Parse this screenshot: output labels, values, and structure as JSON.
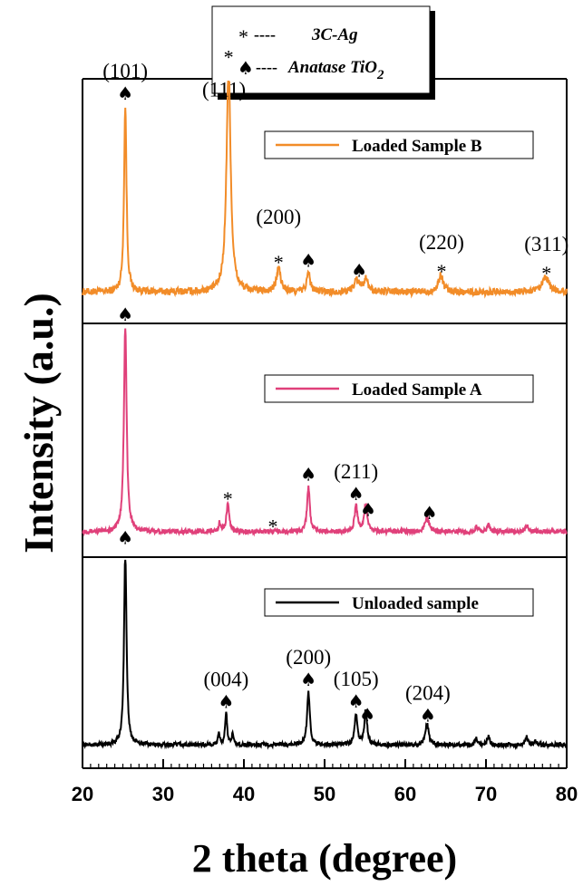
{
  "chart_data": {
    "type": "line",
    "xlabel": "2 theta (degree)",
    "ylabel": "Intensity (a.u.)",
    "xlim": [
      20,
      80
    ],
    "xticks": [
      "20",
      "30",
      "40",
      "50",
      "60",
      "70",
      "80"
    ],
    "grid": false,
    "legend": {
      "placement": "top-center",
      "items": [
        {
          "marker": "*",
          "label": "3C-Ag"
        },
        {
          "marker": "♠",
          "label": "Anatase TiO",
          "subscript": "2"
        }
      ]
    },
    "panels": [
      {
        "name": "Loaded Sample B",
        "color": "#F28C28",
        "baseline": 0.12,
        "peaks": [
          {
            "x": 25.3,
            "h": 0.78,
            "w": 0.18
          },
          {
            "x": 38.1,
            "h": 0.96,
            "w": 0.3
          },
          {
            "x": 44.3,
            "h": 0.1,
            "w": 0.3
          },
          {
            "x": 48.0,
            "h": 0.08,
            "w": 0.25
          },
          {
            "x": 54.0,
            "h": 0.05,
            "w": 0.4
          },
          {
            "x": 55.1,
            "h": 0.05,
            "w": 0.35
          },
          {
            "x": 64.4,
            "h": 0.07,
            "w": 0.35
          },
          {
            "x": 77.4,
            "h": 0.06,
            "w": 0.5
          }
        ],
        "annotations": [
          {
            "x": 25.3,
            "symbol": "♠",
            "label": "(101)"
          },
          {
            "x": 38.1,
            "symbol": "*",
            "label": "(111)"
          },
          {
            "x": 44.3,
            "symbol": "*",
            "label": "(200)"
          },
          {
            "x": 48.0,
            "symbol": "♠",
            "label": ""
          },
          {
            "x": 54.3,
            "symbol": "♠",
            "label": ""
          },
          {
            "x": 64.5,
            "symbol": "*",
            "label": "(220)"
          },
          {
            "x": 77.5,
            "symbol": "*",
            "label": "(311)"
          }
        ]
      },
      {
        "name": "Loaded Sample A",
        "color": "#E0407A",
        "baseline": 0.1,
        "peaks": [
          {
            "x": 25.3,
            "h": 0.9,
            "w": 0.2
          },
          {
            "x": 37.0,
            "h": 0.04,
            "w": 0.15
          },
          {
            "x": 38.0,
            "h": 0.12,
            "w": 0.2
          },
          {
            "x": 48.0,
            "h": 0.2,
            "w": 0.2
          },
          {
            "x": 53.9,
            "h": 0.11,
            "w": 0.22
          },
          {
            "x": 55.1,
            "h": 0.12,
            "w": 0.22
          },
          {
            "x": 62.7,
            "h": 0.06,
            "w": 0.3
          },
          {
            "x": 68.8,
            "h": 0.02,
            "w": 0.2
          },
          {
            "x": 70.3,
            "h": 0.03,
            "w": 0.2
          },
          {
            "x": 75.1,
            "h": 0.03,
            "w": 0.2
          }
        ],
        "annotations": [
          {
            "x": 25.3,
            "symbol": "♠",
            "label": ""
          },
          {
            "x": 38.0,
            "symbol": "*",
            "label": ""
          },
          {
            "x": 43.6,
            "symbol": "*",
            "label": ""
          },
          {
            "x": 48.0,
            "symbol": "♠",
            "label": ""
          },
          {
            "x": 53.9,
            "symbol": "♠",
            "label": "(211)"
          },
          {
            "x": 55.4,
            "symbol": "♠",
            "label": ""
          },
          {
            "x": 63.0,
            "symbol": "♠",
            "label": ""
          }
        ]
      },
      {
        "name": "Unloaded sample",
        "color": "#000000",
        "baseline": 0.1,
        "peaks": [
          {
            "x": 25.3,
            "h": 0.95,
            "w": 0.18
          },
          {
            "x": 36.9,
            "h": 0.05,
            "w": 0.15
          },
          {
            "x": 37.8,
            "h": 0.15,
            "w": 0.15
          },
          {
            "x": 38.6,
            "h": 0.05,
            "w": 0.15
          },
          {
            "x": 48.0,
            "h": 0.26,
            "w": 0.2
          },
          {
            "x": 53.9,
            "h": 0.15,
            "w": 0.2
          },
          {
            "x": 55.1,
            "h": 0.17,
            "w": 0.2
          },
          {
            "x": 62.7,
            "h": 0.1,
            "w": 0.25
          },
          {
            "x": 68.8,
            "h": 0.03,
            "w": 0.2
          },
          {
            "x": 70.3,
            "h": 0.04,
            "w": 0.2
          },
          {
            "x": 75.0,
            "h": 0.04,
            "w": 0.2
          },
          {
            "x": 76.1,
            "h": 0.02,
            "w": 0.2
          }
        ],
        "annotations": [
          {
            "x": 25.3,
            "symbol": "♠",
            "label": ""
          },
          {
            "x": 37.8,
            "symbol": "♠",
            "label": "(004)"
          },
          {
            "x": 48.0,
            "symbol": "♠",
            "label": "(200)"
          },
          {
            "x": 53.9,
            "symbol": "♠",
            "label": "(105)"
          },
          {
            "x": 55.3,
            "symbol": "♠",
            "label": ""
          },
          {
            "x": 62.8,
            "symbol": "♠",
            "label": "(204)"
          }
        ]
      }
    ]
  }
}
